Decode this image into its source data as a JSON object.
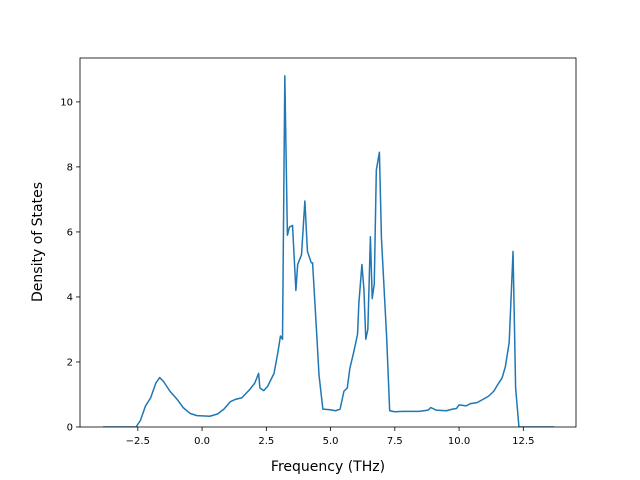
{
  "chart_data": {
    "type": "line",
    "xlabel": "Frequency (THz)",
    "ylabel": "Density of States",
    "x": [
      -3.85,
      -2.57,
      -2.4,
      -2.2,
      -2.0,
      -1.8,
      -1.65,
      -1.5,
      -1.25,
      -0.97,
      -0.74,
      -0.47,
      -0.2,
      0.3,
      0.6,
      0.85,
      1.1,
      1.3,
      1.55,
      1.85,
      2.05,
      2.2,
      2.25,
      2.4,
      2.55,
      2.8,
      2.95,
      3.05,
      3.13,
      3.22,
      3.32,
      3.4,
      3.52,
      3.65,
      3.72,
      3.87,
      4.0,
      4.1,
      4.25,
      4.3,
      4.45,
      4.55,
      4.7,
      4.98,
      5.2,
      5.37,
      5.52,
      5.65,
      5.75,
      5.9,
      6.05,
      6.1,
      6.22,
      6.3,
      6.37,
      6.45,
      6.55,
      6.62,
      6.7,
      6.78,
      6.9,
      6.98,
      7.18,
      7.3,
      7.5,
      7.8,
      8.45,
      8.8,
      8.9,
      9.1,
      9.5,
      9.75,
      9.9,
      10.0,
      10.27,
      10.45,
      10.7,
      10.93,
      11.15,
      11.35,
      11.5,
      11.67,
      11.8,
      11.95,
      12.1,
      12.2,
      12.33,
      13.7
    ],
    "values": [
      0,
      0,
      0.2,
      0.65,
      0.9,
      1.35,
      1.52,
      1.4,
      1.1,
      0.85,
      0.6,
      0.42,
      0.35,
      0.33,
      0.4,
      0.55,
      0.78,
      0.85,
      0.9,
      1.15,
      1.35,
      1.65,
      1.2,
      1.12,
      1.25,
      1.65,
      2.3,
      2.8,
      2.7,
      10.8,
      5.9,
      6.15,
      6.2,
      4.2,
      5.0,
      5.3,
      6.95,
      5.4,
      5.05,
      5.05,
      3.0,
      1.6,
      0.55,
      0.53,
      0.5,
      0.55,
      1.1,
      1.2,
      1.8,
      2.3,
      2.85,
      3.8,
      5.0,
      4.2,
      2.7,
      3.0,
      5.85,
      3.95,
      4.4,
      7.9,
      8.45,
      5.8,
      2.8,
      0.5,
      0.47,
      0.48,
      0.48,
      0.52,
      0.6,
      0.52,
      0.5,
      0.55,
      0.57,
      0.68,
      0.65,
      0.72,
      0.75,
      0.85,
      0.95,
      1.1,
      1.3,
      1.5,
      1.85,
      2.6,
      5.4,
      1.2,
      0,
      0
    ],
    "color": "#1f77b4",
    "xlim": [
      -4.75,
      14.55
    ],
    "ylim": [
      0,
      11.35
    ],
    "xticks": [
      {
        "value": -2.5,
        "label": "−2.5"
      },
      {
        "value": 0,
        "label": "0.0"
      },
      2.5,
      {
        "value": 5,
        "label": "5.0"
      },
      7.5,
      {
        "value": 10,
        "label": "10.0"
      },
      12.5
    ],
    "yticks": [
      0,
      2,
      4,
      6,
      8,
      10
    ],
    "grid": false
  }
}
